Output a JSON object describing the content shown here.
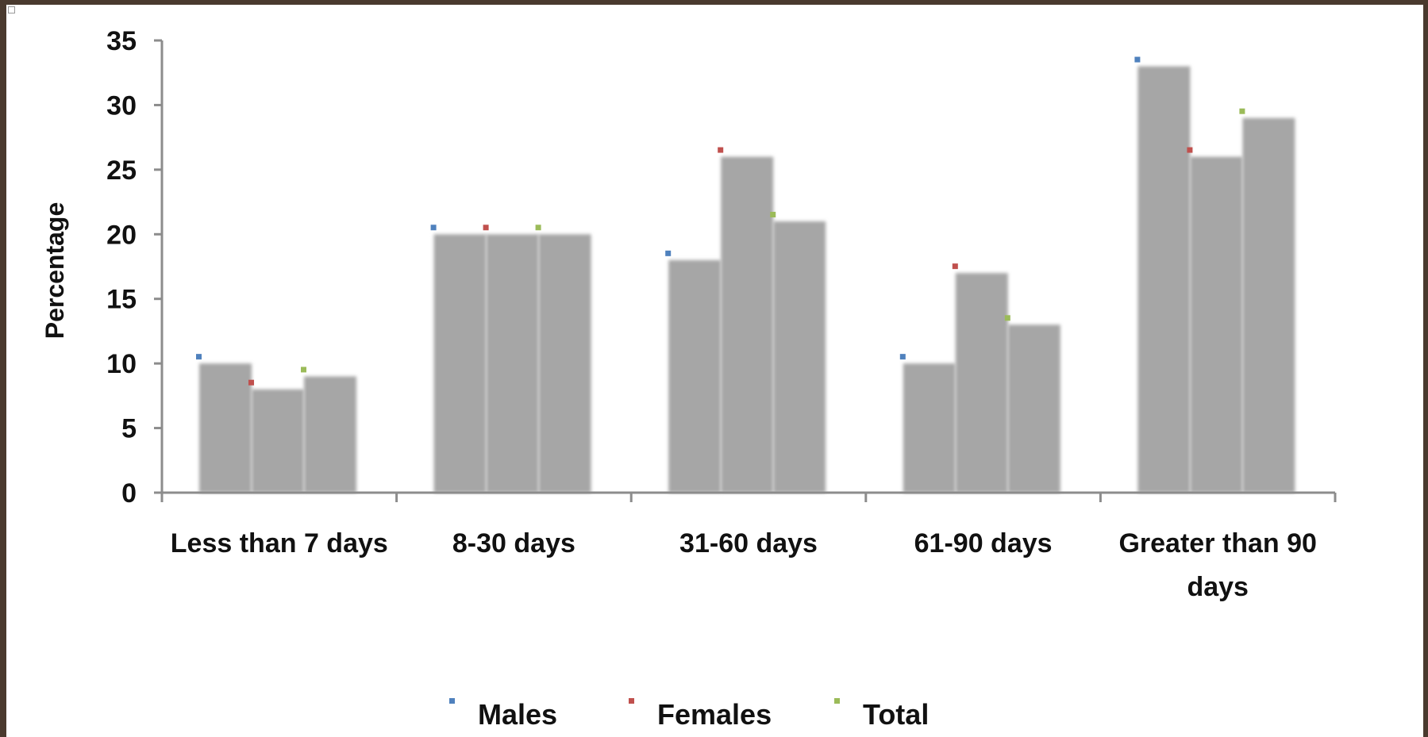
{
  "chart_data": {
    "type": "bar",
    "title": "",
    "xlabel": "",
    "ylabel": "Percentage",
    "ylim": [
      0,
      35
    ],
    "yticks": [
      "0",
      "5",
      "10",
      "15",
      "20",
      "25",
      "30",
      "35"
    ],
    "grid": false,
    "legend_position": "bottom",
    "categories": [
      [
        "Less than  7 days"
      ],
      [
        "8-30 days"
      ],
      [
        "31-60 days"
      ],
      [
        "61-90 days"
      ],
      [
        "Greater than 90",
        "days"
      ]
    ],
    "series": [
      {
        "name": "Males",
        "color": "#4f81bd",
        "values": [
          10,
          20,
          18,
          10,
          33
        ]
      },
      {
        "name": "Females",
        "color": "#c0504d",
        "values": [
          8,
          20,
          26,
          17,
          26
        ]
      },
      {
        "name": "Total",
        "color": "#9bbb59",
        "values": [
          9,
          20,
          21,
          13,
          29
        ]
      }
    ],
    "bar_color": "#a6a6a6"
  }
}
